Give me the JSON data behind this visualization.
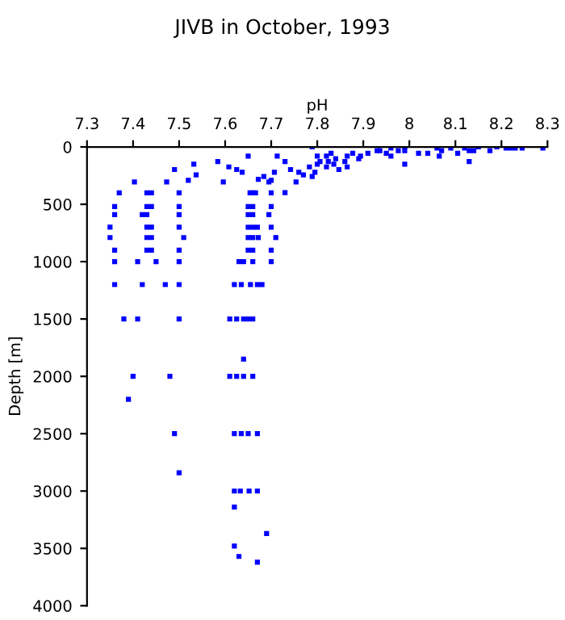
{
  "chart_data": {
    "type": "scatter",
    "title": "JIVB in October, 1993",
    "xlabel": "pH",
    "ylabel": "Depth [m]",
    "xlim": [
      7.3,
      8.3
    ],
    "xticks": [
      7.3,
      7.4,
      7.5,
      7.6,
      7.7,
      7.8,
      7.9,
      8,
      8.1,
      8.2,
      8.3
    ],
    "ylim": [
      4000,
      0
    ],
    "yticks": [
      0,
      500,
      1000,
      1500,
      2000,
      2500,
      3000,
      3500,
      4000
    ],
    "marker": "square",
    "grid": false,
    "legend": false,
    "series": [
      {
        "color": "#0000ff",
        "x": [
          8.21,
          8.22,
          8.23,
          8.245,
          8.19,
          8.175,
          8.15,
          8.13,
          8.12,
          8.105,
          8.09,
          8.07,
          8.06,
          8.04,
          8.02,
          7.99,
          7.976,
          7.96,
          7.96,
          7.95,
          7.93,
          7.91,
          7.894,
          7.89,
          7.877,
          7.865,
          7.86,
          7.84,
          7.83,
          7.82,
          7.806,
          7.8,
          7.789,
          7.783,
          7.8,
          7.824,
          7.836,
          7.865,
          7.847,
          7.82,
          7.795,
          7.789,
          7.77,
          7.76,
          7.754,
          7.742,
          7.73,
          7.713,
          7.707,
          7.7,
          7.695,
          7.684,
          7.672,
          7.65,
          7.637,
          7.625,
          7.608,
          7.596,
          7.584,
          7.537,
          7.532,
          7.52,
          7.49,
          7.473,
          7.403,
          8.13,
          7.99,
          8.14,
          7.99,
          8.29,
          8.065,
          7.936,
          7.73,
          7.37,
          7.43,
          7.44,
          7.5,
          7.654,
          7.66,
          7.666,
          7.7,
          7.36,
          7.43,
          7.44,
          7.5,
          7.65,
          7.66,
          7.7,
          7.36,
          7.42,
          7.43,
          7.5,
          7.65,
          7.66,
          7.695,
          7.35,
          7.43,
          7.44,
          7.5,
          7.65,
          7.66,
          7.67,
          7.7,
          7.35,
          7.43,
          7.44,
          7.51,
          7.65,
          7.66,
          7.672,
          7.71,
          7.36,
          7.43,
          7.44,
          7.5,
          7.65,
          7.66,
          7.7,
          7.36,
          7.41,
          7.45,
          7.5,
          7.63,
          7.64,
          7.66,
          7.7,
          7.36,
          7.42,
          7.47,
          7.5,
          7.62,
          7.635,
          7.655,
          7.67,
          7.68,
          7.38,
          7.41,
          7.5,
          7.61,
          7.625,
          7.64,
          7.65,
          7.66,
          7.64,
          7.4,
          7.48,
          7.61,
          7.625,
          7.64,
          7.66,
          7.39,
          7.49,
          7.62,
          7.635,
          7.65,
          7.67,
          7.5,
          7.62,
          7.633,
          7.652,
          7.67,
          7.62,
          7.69,
          7.62,
          7.63,
          7.67
        ],
        "values": [
          9,
          9,
          9,
          9,
          0,
          33,
          0,
          33,
          9,
          56,
          9,
          33,
          9,
          56,
          56,
          0,
          33,
          9,
          80,
          56,
          33,
          56,
          80,
          103,
          56,
          80,
          127,
          103,
          56,
          80,
          127,
          150,
          0,
          174,
          80,
          127,
          150,
          174,
          197,
          174,
          221,
          258,
          244,
          221,
          305,
          197,
          127,
          80,
          221,
          291,
          305,
          258,
          282,
          80,
          221,
          197,
          174,
          305,
          127,
          244,
          150,
          291,
          197,
          305,
          305,
          127,
          150,
          33,
          33,
          9,
          80,
          33,
          399,
          400,
          400,
          400,
          400,
          400,
          400,
          400,
          400,
          520,
          520,
          520,
          520,
          520,
          520,
          520,
          590,
          590,
          590,
          590,
          590,
          590,
          590,
          700,
          700,
          700,
          700,
          700,
          700,
          700,
          700,
          790,
          790,
          790,
          790,
          790,
          790,
          790,
          790,
          900,
          900,
          900,
          900,
          900,
          900,
          900,
          1000,
          1000,
          1000,
          1000,
          1000,
          1000,
          1000,
          1000,
          1200,
          1200,
          1200,
          1200,
          1200,
          1200,
          1200,
          1200,
          1200,
          1500,
          1500,
          1500,
          1500,
          1500,
          1500,
          1500,
          1500,
          1850,
          2000,
          2000,
          2000,
          2000,
          2000,
          2000,
          2200,
          2500,
          2500,
          2500,
          2500,
          2500,
          2840,
          3000,
          3000,
          3000,
          3000,
          3140,
          3370,
          3480,
          3570,
          3620
        ]
      }
    ]
  }
}
